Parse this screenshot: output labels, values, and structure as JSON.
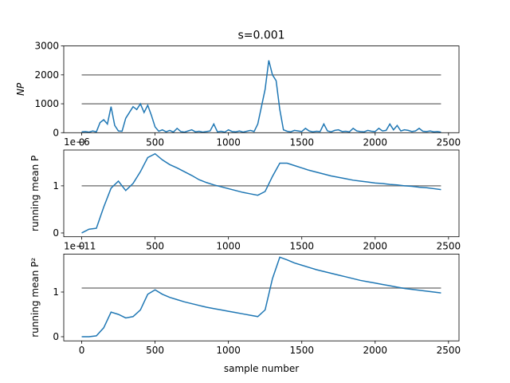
{
  "chart_data": [
    {
      "type": "line",
      "title": "s=0.001",
      "ylabel": "NP",
      "color": "#1f77b4",
      "x": [
        0,
        25,
        50,
        75,
        100,
        125,
        150,
        175,
        200,
        225,
        250,
        275,
        300,
        325,
        350,
        375,
        400,
        425,
        450,
        475,
        500,
        525,
        550,
        575,
        600,
        625,
        650,
        675,
        700,
        725,
        750,
        775,
        800,
        825,
        850,
        875,
        900,
        925,
        950,
        975,
        1000,
        1025,
        1050,
        1075,
        1100,
        1125,
        1150,
        1175,
        1200,
        1225,
        1250,
        1275,
        1300,
        1325,
        1350,
        1375,
        1400,
        1425,
        1450,
        1475,
        1500,
        1525,
        1550,
        1575,
        1600,
        1625,
        1650,
        1675,
        1700,
        1725,
        1750,
        1775,
        1800,
        1825,
        1850,
        1875,
        1900,
        1925,
        1950,
        1975,
        2000,
        2025,
        2050,
        2075,
        2100,
        2125,
        2150,
        2175,
        2200,
        2225,
        2250,
        2275,
        2300,
        2325,
        2350,
        2375,
        2400,
        2425,
        2449
      ],
      "values": [
        30,
        40,
        20,
        60,
        30,
        350,
        450,
        300,
        900,
        250,
        60,
        50,
        500,
        700,
        900,
        800,
        1000,
        700,
        950,
        600,
        200,
        50,
        100,
        30,
        80,
        20,
        150,
        40,
        20,
        60,
        100,
        30,
        50,
        20,
        40,
        60,
        300,
        30,
        50,
        20,
        100,
        40,
        30,
        60,
        20,
        50,
        80,
        40,
        300,
        900,
        1500,
        2500,
        2000,
        1800,
        800,
        100,
        50,
        30,
        80,
        60,
        40,
        150,
        60,
        30,
        50,
        40,
        300,
        60,
        30,
        80,
        100,
        40,
        50,
        30,
        150,
        60,
        40,
        30,
        80,
        50,
        40,
        150,
        60,
        80,
        300,
        100,
        250,
        60,
        100,
        80,
        40,
        60,
        150,
        50,
        40,
        60,
        30,
        40,
        20
      ],
      "hlines": [
        1000,
        2000
      ],
      "hline_color": "#808080",
      "xlim": [
        -122.45,
        2571.45
      ],
      "xticks": [
        0,
        500,
        1000,
        1500,
        2000,
        2500
      ],
      "ylim": [
        0,
        3000
      ],
      "yticks": [
        0,
        1000,
        2000,
        3000
      ]
    },
    {
      "type": "line",
      "ylabel": "running mean P",
      "offset_text": "1e−6",
      "color": "#1f77b4",
      "x": [
        0,
        50,
        100,
        150,
        200,
        250,
        300,
        350,
        400,
        450,
        500,
        550,
        600,
        650,
        700,
        750,
        800,
        850,
        900,
        950,
        1000,
        1050,
        1100,
        1150,
        1200,
        1250,
        1300,
        1350,
        1400,
        1450,
        1500,
        1550,
        1600,
        1650,
        1700,
        1750,
        1800,
        1850,
        1900,
        1950,
        2000,
        2050,
        2100,
        2150,
        2200,
        2250,
        2300,
        2350,
        2400,
        2449
      ],
      "values": [
        0,
        8e-08,
        1e-07,
        5.5e-07,
        9.5e-07,
        1.1e-06,
        9e-07,
        1.05e-06,
        1.3e-06,
        1.6e-06,
        1.68e-06,
        1.55e-06,
        1.45e-06,
        1.38e-06,
        1.3e-06,
        1.22e-06,
        1.13e-06,
        1.07e-06,
        1.02e-06,
        9.8e-07,
        9.4e-07,
        9e-07,
        8.6e-07,
        8.3e-07,
        8e-07,
        8.8e-07,
        1.2e-06,
        1.48e-06,
        1.48e-06,
        1.43e-06,
        1.38e-06,
        1.33e-06,
        1.29e-06,
        1.25e-06,
        1.21e-06,
        1.18e-06,
        1.15e-06,
        1.12e-06,
        1.1e-06,
        1.08e-06,
        1.06e-06,
        1.05e-06,
        1.03e-06,
        1.02e-06,
        1e-06,
        9.9e-07,
        9.7e-07,
        9.6e-07,
        9.4e-07,
        9.2e-07
      ],
      "hlines": [
        1e-06
      ],
      "hline_color": "#808080",
      "xlim": [
        -122.45,
        2571.45
      ],
      "xticks": [
        0,
        500,
        1000,
        1500,
        2000,
        2500
      ],
      "ylim": [
        -8e-08,
        1.76e-06
      ],
      "yticks": [
        0,
        {
          "value": 1e-06,
          "label": "1"
        }
      ]
    },
    {
      "type": "line",
      "ylabel": "running mean P²",
      "xlabel": "sample number",
      "offset_text": "1e−11",
      "color": "#1f77b4",
      "x": [
        0,
        50,
        100,
        150,
        200,
        250,
        300,
        350,
        400,
        450,
        500,
        550,
        600,
        650,
        700,
        750,
        800,
        850,
        900,
        950,
        1000,
        1050,
        1100,
        1150,
        1200,
        1250,
        1300,
        1350,
        1400,
        1450,
        1500,
        1550,
        1600,
        1650,
        1700,
        1750,
        1800,
        1850,
        1900,
        1950,
        2000,
        2050,
        2100,
        2150,
        2200,
        2250,
        2300,
        2350,
        2400,
        2449
      ],
      "values": [
        0,
        0,
        2e-13,
        2e-12,
        5.5e-12,
        5e-12,
        4.2e-12,
        4.5e-12,
        6e-12,
        9.5e-12,
        1.05e-11,
        9.5e-12,
        8.8e-12,
        8.3e-12,
        7.8e-12,
        7.4e-12,
        7e-12,
        6.6e-12,
        6.3e-12,
        6e-12,
        5.7e-12,
        5.4e-12,
        5.1e-12,
        4.8e-12,
        4.5e-12,
        6e-12,
        1.3e-11,
        1.78e-11,
        1.72e-11,
        1.65e-11,
        1.6e-11,
        1.55e-11,
        1.5e-11,
        1.46e-11,
        1.42e-11,
        1.38e-11,
        1.34e-11,
        1.3e-11,
        1.26e-11,
        1.23e-11,
        1.2e-11,
        1.17e-11,
        1.14e-11,
        1.11e-11,
        1.08e-11,
        1.06e-11,
        1.04e-11,
        1.02e-11,
        1e-11,
        9.8e-12
      ],
      "hlines": [
        1.09e-11
      ],
      "hline_color": "#808080",
      "xlim": [
        -122.45,
        2571.45
      ],
      "xticks": [
        0,
        500,
        1000,
        1500,
        2000,
        2500
      ],
      "ylim": [
        -9.3e-13,
        1.85e-11
      ],
      "yticks": [
        0,
        {
          "value": 1e-11,
          "label": "1"
        }
      ]
    }
  ]
}
